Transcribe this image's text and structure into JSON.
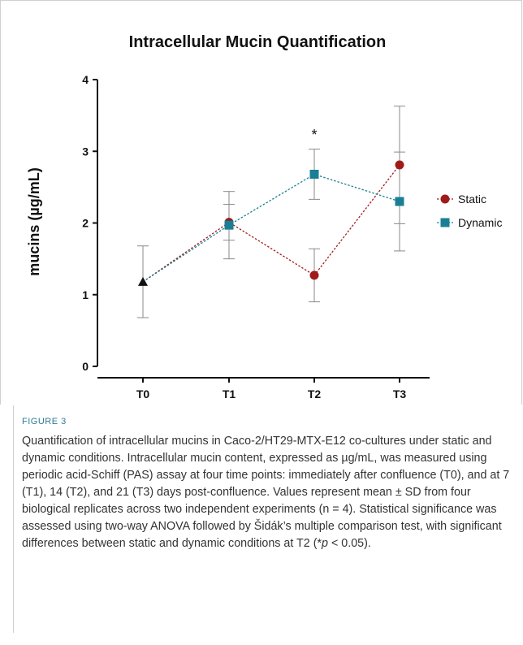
{
  "chart_data": {
    "type": "line",
    "title": "Intracellular Mucin Quantification",
    "ylabel": "mucins (µg/mL)",
    "xlabel": "",
    "categories": [
      "T0",
      "T1",
      "T2",
      "T3"
    ],
    "ylim": [
      0,
      4
    ],
    "yticks": [
      0,
      1,
      2,
      3,
      4
    ],
    "grid": false,
    "legend_position": "right",
    "baseline": {
      "x": "T0",
      "value": 1.18,
      "error": 0.5,
      "marker": "triangle",
      "color": "#111111"
    },
    "series": [
      {
        "name": "Static",
        "color": "#a11a1a",
        "marker": "circle",
        "x": [
          "T0",
          "T1",
          "T2",
          "T3"
        ],
        "values": [
          1.18,
          2.01,
          1.27,
          2.81
        ],
        "errors": [
          0.5,
          0.25,
          0.37,
          0.82
        ]
      },
      {
        "name": "Dynamic",
        "color": "#1a7f94",
        "marker": "square",
        "x": [
          "T0",
          "T1",
          "T2",
          "T3"
        ],
        "values": [
          1.18,
          1.97,
          2.68,
          2.3
        ],
        "errors": [
          0.5,
          0.47,
          0.35,
          0.69
        ]
      }
    ],
    "annotations": [
      {
        "text": "*",
        "x": "T2"
      }
    ]
  },
  "caption": {
    "label": "FIGURE 3",
    "text_main": "Quantification of intracellular mucins in Caco-2/HT29-MTX-E12 co-cultures under static and dynamic conditions. Intracellular mucin content, expressed as µg/mL, was measured using periodic acid-Schiff (PAS) assay at four time points: immediately after confluence (T0), and at 7 (T1), 14 (T2), and 21 (T3) days post-confluence. Values represent mean ± SD from four biological replicates across two independent experiments (n = 4). Statistical significance was assessed using two-way ANOVA followed by Šidák’s multiple comparison test, with significant differences between static and dynamic conditions at T2 (*",
    "p_symbol": "p",
    "text_end": " < 0.05)."
  }
}
